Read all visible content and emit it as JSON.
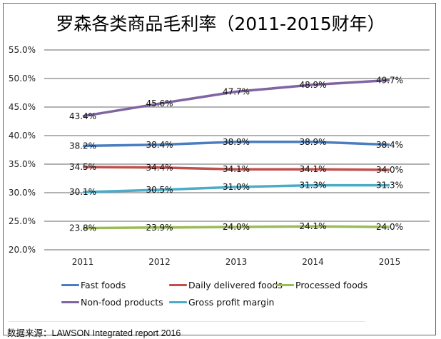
{
  "chart_data": {
    "type": "line",
    "title": "罗森各类商品毛利率（2011-2015财年）",
    "categories": [
      "2011",
      "2012",
      "2013",
      "2014",
      "2015"
    ],
    "ylim": [
      20,
      55
    ],
    "yticks": [
      "20.0%",
      "25.0%",
      "30.0%",
      "35.0%",
      "40.0%",
      "45.0%",
      "50.0%",
      "55.0%"
    ],
    "grid": true,
    "legend_placement": "bottom",
    "series": [
      {
        "name": "Fast foods",
        "color": "#4a7ebf",
        "values": [
          38.2,
          38.4,
          38.9,
          38.9,
          38.4
        ],
        "labels": [
          "38.2%",
          "38.4%",
          "38.9%",
          "38.9%",
          "38.4%"
        ]
      },
      {
        "name": "Daily delivered foods",
        "color": "#c0504d",
        "values": [
          34.5,
          34.4,
          34.1,
          34.1,
          34.0
        ],
        "labels": [
          "34.5%",
          "34.4%",
          "34.1%",
          "34.1%",
          "34.0%"
        ]
      },
      {
        "name": "Processed foods",
        "color": "#9bbb59",
        "values": [
          23.8,
          23.9,
          24.0,
          24.1,
          24.0
        ],
        "labels": [
          "23.8%",
          "23.9%",
          "24.0%",
          "24.1%",
          "24.0%"
        ]
      },
      {
        "name": "Non-food products",
        "color": "#8064a2",
        "values": [
          43.4,
          45.6,
          47.7,
          48.9,
          49.7
        ],
        "labels": [
          "43.4%",
          "45.6%",
          "47.7%",
          "48.9%",
          "49.7%"
        ]
      },
      {
        "name": "Gross profit margin",
        "color": "#4bacc6",
        "values": [
          30.1,
          30.5,
          31.0,
          31.3,
          31.3
        ],
        "labels": [
          "30.1%",
          "30.5%",
          "31.0%",
          "31.3%",
          "31.3%"
        ]
      }
    ],
    "source": "数据来源：LAWSON Integrated report 2016"
  }
}
